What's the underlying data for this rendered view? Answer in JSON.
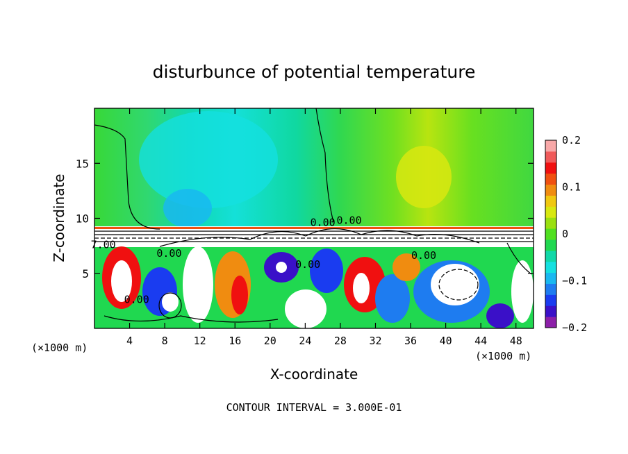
{
  "chart_data": {
    "type": "heatmap",
    "title": "disturbunce of potential temperature",
    "xlabel": "X-coordinate",
    "ylabel": "Z-coordinate",
    "x_unit": "(×1000 m)",
    "x_unit_right": "(×1000 m)",
    "footer": "CONTOUR INTERVAL = 3.000E-01",
    "xlim": [
      0,
      50
    ],
    "ylim": [
      0,
      20
    ],
    "x_ticks": [
      4,
      8,
      12,
      16,
      20,
      24,
      28,
      32,
      36,
      40,
      44,
      48
    ],
    "y_ticks": [
      5,
      10,
      15
    ],
    "colorbar": {
      "range": [
        -0.2,
        0.2
      ],
      "tick_values": [
        0.2,
        0.1,
        0,
        -0.1,
        -0.2
      ],
      "tick_labels": [
        "0.2",
        "0.1",
        "0",
        "−0.1",
        "−0.2"
      ],
      "colors": [
        "#8c1fa8",
        "#3a10c8",
        "#1a3cf0",
        "#1e7cf0",
        "#19b8f0",
        "#14e0e0",
        "#10d8a8",
        "#20d850",
        "#50e020",
        "#9ae010",
        "#d8e810",
        "#f0c810",
        "#f08c10",
        "#f05010",
        "#f01010",
        "#f05a5a",
        "#f8a8a8"
      ]
    },
    "contour_labels": [
      {
        "text": "0.00",
        "x": 26,
        "z": 9.3
      },
      {
        "text": "0.00",
        "x": 29,
        "z": 9.5
      },
      {
        "text": "0.00",
        "x": 24.3,
        "z": 5.5
      },
      {
        "text": "0.00",
        "x": 37.5,
        "z": 6.3
      },
      {
        "text": "0.00",
        "x": 8.5,
        "z": 6.5
      },
      {
        "text": "0.00",
        "x": 4.8,
        "z": 2.3
      },
      {
        "text": "7.00",
        "x": 1,
        "z": 7.3
      }
    ]
  }
}
